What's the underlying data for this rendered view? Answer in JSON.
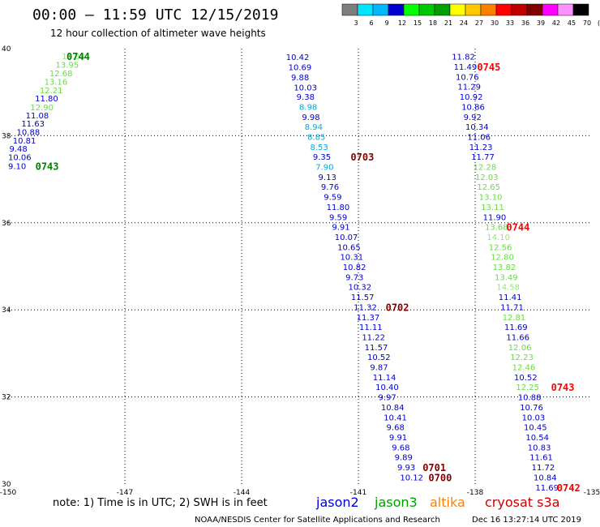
{
  "header": {
    "title": "00:00 – 11:59 UTC 12/15/2019",
    "subtitle": "12 hour collection of altimeter wave heights"
  },
  "legend": {
    "colors": [
      "#7f7f7f",
      "#00e5ff",
      "#00b8ff",
      "#0000d0",
      "#00ff00",
      "#00c800",
      "#00a000",
      "#ffff00",
      "#ffc800",
      "#ff8000",
      "#ff0000",
      "#c00000",
      "#800000",
      "#ff00ff",
      "#ff90ff",
      "#000000"
    ],
    "labels": [
      "3",
      "6",
      "9",
      "12",
      "15",
      "18",
      "21",
      "24",
      "27",
      "30",
      "33",
      "36",
      "39",
      "42",
      "45",
      "70",
      "(ft)"
    ]
  },
  "footer": {
    "note": "note:  1) Time is in UTC; 2) SWH is in feet",
    "satellites": [
      {
        "name": "jason2",
        "color": "#0000d0"
      },
      {
        "name": "jason3",
        "color": "#00a000"
      },
      {
        "name": "altika",
        "color": "#ff8000"
      },
      {
        "name": "cryosat s3a",
        "color": "#cc0000"
      }
    ],
    "credit": "NOAA/NESDIS Center for Satellite Applications and Research",
    "timestamp": "Dec 16 13:27:14 UTC 2019"
  },
  "chart_data": {
    "type": "scatter",
    "xlim": [
      -150,
      -135
    ],
    "ylim": [
      30,
      40
    ],
    "x_ticks": [
      -150,
      -147,
      -144,
      -141,
      -138,
      -135
    ],
    "y_ticks": [
      30,
      32,
      34,
      36,
      38,
      40
    ],
    "grid": true,
    "series": [
      {
        "name": "jason3",
        "points": [
          {
            "x": -148.62,
            "y": 39.83,
            "v": "14.33",
            "c": "#88ee66"
          },
          {
            "x": -148.78,
            "y": 39.64,
            "v": "13.95",
            "c": "#66dd44"
          },
          {
            "x": -148.94,
            "y": 39.44,
            "v": "12.68",
            "c": "#66dd44"
          },
          {
            "x": -149.07,
            "y": 39.25,
            "v": "13.16",
            "c": "#66dd44"
          },
          {
            "x": -149.19,
            "y": 39.05,
            "v": "12.21",
            "c": "#66dd44"
          },
          {
            "x": -149.31,
            "y": 38.86,
            "v": "11.80",
            "c": "#0000cc"
          },
          {
            "x": -149.43,
            "y": 38.66,
            "v": "12.90",
            "c": "#66dd44"
          },
          {
            "x": -149.55,
            "y": 38.47,
            "v": "11.08",
            "c": "#0000cc"
          },
          {
            "x": -149.66,
            "y": 38.29,
            "v": "11.63",
            "c": "#0000cc"
          },
          {
            "x": -149.78,
            "y": 38.09,
            "v": "10.88",
            "c": "#0000cc"
          },
          {
            "x": -149.88,
            "y": 37.9,
            "v": "10.81",
            "c": "#0000cc"
          },
          {
            "x": -149.97,
            "y": 37.71,
            "v": "9.48",
            "c": "#0000cc"
          },
          {
            "x": -150.0,
            "y": 37.51,
            "v": "10.06",
            "c": "#0000cc"
          },
          {
            "x": -150.0,
            "y": 37.31,
            "v": "9.10",
            "c": "#0000cc"
          }
        ]
      },
      {
        "name": "jason2",
        "points": [
          {
            "x": -142.86,
            "y": 39.81,
            "v": "10.42",
            "c": "#0000cc"
          },
          {
            "x": -142.8,
            "y": 39.58,
            "v": "10.69",
            "c": "#0000cc"
          },
          {
            "x": -142.73,
            "y": 39.35,
            "v": "9.88",
            "c": "#0000cc"
          },
          {
            "x": -142.66,
            "y": 39.12,
            "v": "10.03",
            "c": "#0000cc"
          },
          {
            "x": -142.59,
            "y": 38.9,
            "v": "9.38",
            "c": "#0000cc"
          },
          {
            "x": -142.52,
            "y": 38.67,
            "v": "8.98",
            "c": "#00aadd"
          },
          {
            "x": -142.45,
            "y": 38.44,
            "v": "9.98",
            "c": "#0000cc"
          },
          {
            "x": -142.38,
            "y": 38.21,
            "v": "8.94",
            "c": "#00aadd"
          },
          {
            "x": -142.31,
            "y": 37.98,
            "v": "8.85",
            "c": "#00aadd"
          },
          {
            "x": -142.24,
            "y": 37.75,
            "v": "8.53",
            "c": "#00aadd"
          },
          {
            "x": -142.17,
            "y": 37.52,
            "v": "9.35",
            "c": "#0000cc"
          },
          {
            "x": -142.1,
            "y": 37.29,
            "v": "7.90",
            "c": "#00aadd"
          },
          {
            "x": -142.03,
            "y": 37.06,
            "v": "9.13",
            "c": "#0000cc"
          },
          {
            "x": -141.96,
            "y": 36.83,
            "v": "9.76",
            "c": "#0000cc"
          },
          {
            "x": -141.89,
            "y": 36.6,
            "v": "9.59",
            "c": "#0000cc"
          },
          {
            "x": -141.82,
            "y": 36.37,
            "v": "11.80",
            "c": "#0000cc"
          },
          {
            "x": -141.75,
            "y": 36.14,
            "v": "9.59",
            "c": "#0000cc"
          },
          {
            "x": -141.68,
            "y": 35.91,
            "v": "9.91",
            "c": "#0000cc"
          },
          {
            "x": -141.61,
            "y": 35.68,
            "v": "10.07",
            "c": "#0000cc"
          },
          {
            "x": -141.54,
            "y": 35.45,
            "v": "10.65",
            "c": "#0000cc"
          },
          {
            "x": -141.47,
            "y": 35.22,
            "v": "10.31",
            "c": "#0000cc"
          },
          {
            "x": -141.4,
            "y": 34.99,
            "v": "10.82",
            "c": "#0000cc"
          },
          {
            "x": -141.33,
            "y": 34.76,
            "v": "9.73",
            "c": "#0000cc"
          },
          {
            "x": -141.26,
            "y": 34.53,
            "v": "10.32",
            "c": "#0000cc"
          },
          {
            "x": -141.19,
            "y": 34.3,
            "v": "11.57",
            "c": "#0000cc"
          },
          {
            "x": -141.12,
            "y": 34.07,
            "v": "11.32",
            "c": "#0000cc"
          },
          {
            "x": -141.05,
            "y": 33.84,
            "v": "11.37",
            "c": "#0000cc"
          },
          {
            "x": -140.98,
            "y": 33.61,
            "v": "11.11",
            "c": "#0000cc"
          },
          {
            "x": -140.91,
            "y": 33.38,
            "v": "11.22",
            "c": "#0000cc"
          },
          {
            "x": -140.84,
            "y": 33.15,
            "v": "11.57",
            "c": "#0000cc"
          },
          {
            "x": -140.77,
            "y": 32.92,
            "v": "10.52",
            "c": "#0000cc"
          },
          {
            "x": -140.7,
            "y": 32.69,
            "v": "9.87",
            "c": "#0000cc"
          },
          {
            "x": -140.63,
            "y": 32.46,
            "v": "11.14",
            "c": "#0000cc"
          },
          {
            "x": -140.56,
            "y": 32.23,
            "v": "10.40",
            "c": "#0000cc"
          },
          {
            "x": -140.49,
            "y": 32.0,
            "v": "9.97",
            "c": "#0000cc"
          },
          {
            "x": -140.42,
            "y": 31.77,
            "v": "10.84",
            "c": "#0000cc"
          },
          {
            "x": -140.35,
            "y": 31.54,
            "v": "10.41",
            "c": "#0000cc"
          },
          {
            "x": -140.28,
            "y": 31.31,
            "v": "9.68",
            "c": "#0000cc"
          },
          {
            "x": -140.21,
            "y": 31.08,
            "v": "9.91",
            "c": "#0000cc"
          },
          {
            "x": -140.14,
            "y": 30.85,
            "v": "9.68",
            "c": "#0000cc"
          },
          {
            "x": -140.07,
            "y": 30.62,
            "v": "9.89",
            "c": "#0000cc"
          },
          {
            "x": -140.0,
            "y": 30.39,
            "v": "9.93",
            "c": "#0000cc"
          },
          {
            "x": -139.93,
            "y": 30.16,
            "v": "10.12",
            "c": "#0000cc"
          }
        ]
      },
      {
        "name": "cryosat s3a",
        "points": [
          {
            "x": -138.6,
            "y": 39.82,
            "v": "11.82",
            "c": "#0000cc"
          },
          {
            "x": -138.55,
            "y": 39.59,
            "v": "11.49",
            "c": "#0000cc"
          },
          {
            "x": -138.5,
            "y": 39.36,
            "v": "10.76",
            "c": "#0000cc"
          },
          {
            "x": -138.45,
            "y": 39.13,
            "v": "11.29",
            "c": "#0000cc"
          },
          {
            "x": -138.4,
            "y": 38.9,
            "v": "10.92",
            "c": "#0000cc"
          },
          {
            "x": -138.35,
            "y": 38.67,
            "v": "10.86",
            "c": "#0000cc"
          },
          {
            "x": -138.3,
            "y": 38.44,
            "v": "9.92",
            "c": "#0000cc"
          },
          {
            "x": -138.25,
            "y": 38.21,
            "v": "10.34",
            "c": "#0000cc"
          },
          {
            "x": -138.2,
            "y": 37.98,
            "v": "11.06",
            "c": "#0000cc"
          },
          {
            "x": -138.15,
            "y": 37.75,
            "v": "11.23",
            "c": "#0000cc"
          },
          {
            "x": -138.1,
            "y": 37.52,
            "v": "11.77",
            "c": "#0000cc"
          },
          {
            "x": -138.05,
            "y": 37.29,
            "v": "12.28",
            "c": "#66dd44"
          },
          {
            "x": -138.0,
            "y": 37.06,
            "v": "12.03",
            "c": "#66dd44"
          },
          {
            "x": -137.95,
            "y": 36.83,
            "v": "12.65",
            "c": "#66dd44"
          },
          {
            "x": -137.9,
            "y": 36.6,
            "v": "13.10",
            "c": "#66dd44"
          },
          {
            "x": -137.85,
            "y": 36.37,
            "v": "13.11",
            "c": "#66dd44"
          },
          {
            "x": -137.8,
            "y": 36.14,
            "v": "11.90",
            "c": "#0000cc"
          },
          {
            "x": -137.75,
            "y": 35.91,
            "v": "13.68",
            "c": "#66dd44"
          },
          {
            "x": -137.7,
            "y": 35.68,
            "v": "14.10",
            "c": "#88ee66"
          },
          {
            "x": -137.65,
            "y": 35.45,
            "v": "12.56",
            "c": "#66dd44"
          },
          {
            "x": -137.6,
            "y": 35.22,
            "v": "12.80",
            "c": "#66dd44"
          },
          {
            "x": -137.55,
            "y": 34.99,
            "v": "13.82",
            "c": "#66dd44"
          },
          {
            "x": -137.5,
            "y": 34.76,
            "v": "13.49",
            "c": "#66dd44"
          },
          {
            "x": -137.45,
            "y": 34.53,
            "v": "14.58",
            "c": "#88ee66"
          },
          {
            "x": -137.4,
            "y": 34.3,
            "v": "11.41",
            "c": "#0000cc"
          },
          {
            "x": -137.35,
            "y": 34.07,
            "v": "11.71",
            "c": "#0000cc"
          },
          {
            "x": -137.3,
            "y": 33.84,
            "v": "12.81",
            "c": "#66dd44"
          },
          {
            "x": -137.25,
            "y": 33.61,
            "v": "11.69",
            "c": "#0000cc"
          },
          {
            "x": -137.2,
            "y": 33.38,
            "v": "11.66",
            "c": "#0000cc"
          },
          {
            "x": -137.15,
            "y": 33.15,
            "v": "12.06",
            "c": "#66dd44"
          },
          {
            "x": -137.1,
            "y": 32.92,
            "v": "12.23",
            "c": "#66dd44"
          },
          {
            "x": -137.05,
            "y": 32.69,
            "v": "12.46",
            "c": "#66dd44"
          },
          {
            "x": -137.0,
            "y": 32.46,
            "v": "10.52",
            "c": "#0000cc"
          },
          {
            "x": -136.95,
            "y": 32.23,
            "v": "12.25",
            "c": "#66dd44"
          },
          {
            "x": -136.9,
            "y": 32.0,
            "v": "10.88",
            "c": "#0000cc"
          },
          {
            "x": -136.85,
            "y": 31.77,
            "v": "10.76",
            "c": "#0000cc"
          },
          {
            "x": -136.8,
            "y": 31.54,
            "v": "10.03",
            "c": "#0000cc"
          },
          {
            "x": -136.75,
            "y": 31.31,
            "v": "10.45",
            "c": "#0000cc"
          },
          {
            "x": -136.7,
            "y": 31.08,
            "v": "10.54",
            "c": "#0000cc"
          },
          {
            "x": -136.65,
            "y": 30.85,
            "v": "10.83",
            "c": "#0000cc"
          },
          {
            "x": -136.6,
            "y": 30.62,
            "v": "11.61",
            "c": "#0000cc"
          },
          {
            "x": -136.55,
            "y": 30.39,
            "v": "11.72",
            "c": "#0000cc"
          },
          {
            "x": -136.5,
            "y": 30.16,
            "v": "10.84",
            "c": "#0000cc"
          },
          {
            "x": -136.45,
            "y": 29.93,
            "v": "11.69",
            "c": "#0000cc"
          }
        ]
      }
    ],
    "time_labels": [
      {
        "x": -148.5,
        "y": 39.83,
        "t": "0744",
        "c": "#008000"
      },
      {
        "x": -149.3,
        "y": 37.31,
        "t": "0743",
        "c": "#008000"
      },
      {
        "x": -141.2,
        "y": 37.52,
        "t": "0703",
        "c": "#800000"
      },
      {
        "x": -140.3,
        "y": 34.07,
        "t": "0702",
        "c": "#800000"
      },
      {
        "x": -139.35,
        "y": 30.39,
        "t": "0701",
        "c": "#800000"
      },
      {
        "x": -139.2,
        "y": 30.16,
        "t": "0700",
        "c": "#800000"
      },
      {
        "x": -137.95,
        "y": 39.59,
        "t": "0745",
        "c": "#ff0000"
      },
      {
        "x": -137.2,
        "y": 35.91,
        "t": "0744",
        "c": "#ff0000"
      },
      {
        "x": -136.05,
        "y": 32.23,
        "t": "0743",
        "c": "#ff0000"
      },
      {
        "x": -135.9,
        "y": 29.93,
        "t": "0742",
        "c": "#ff0000"
      }
    ]
  }
}
